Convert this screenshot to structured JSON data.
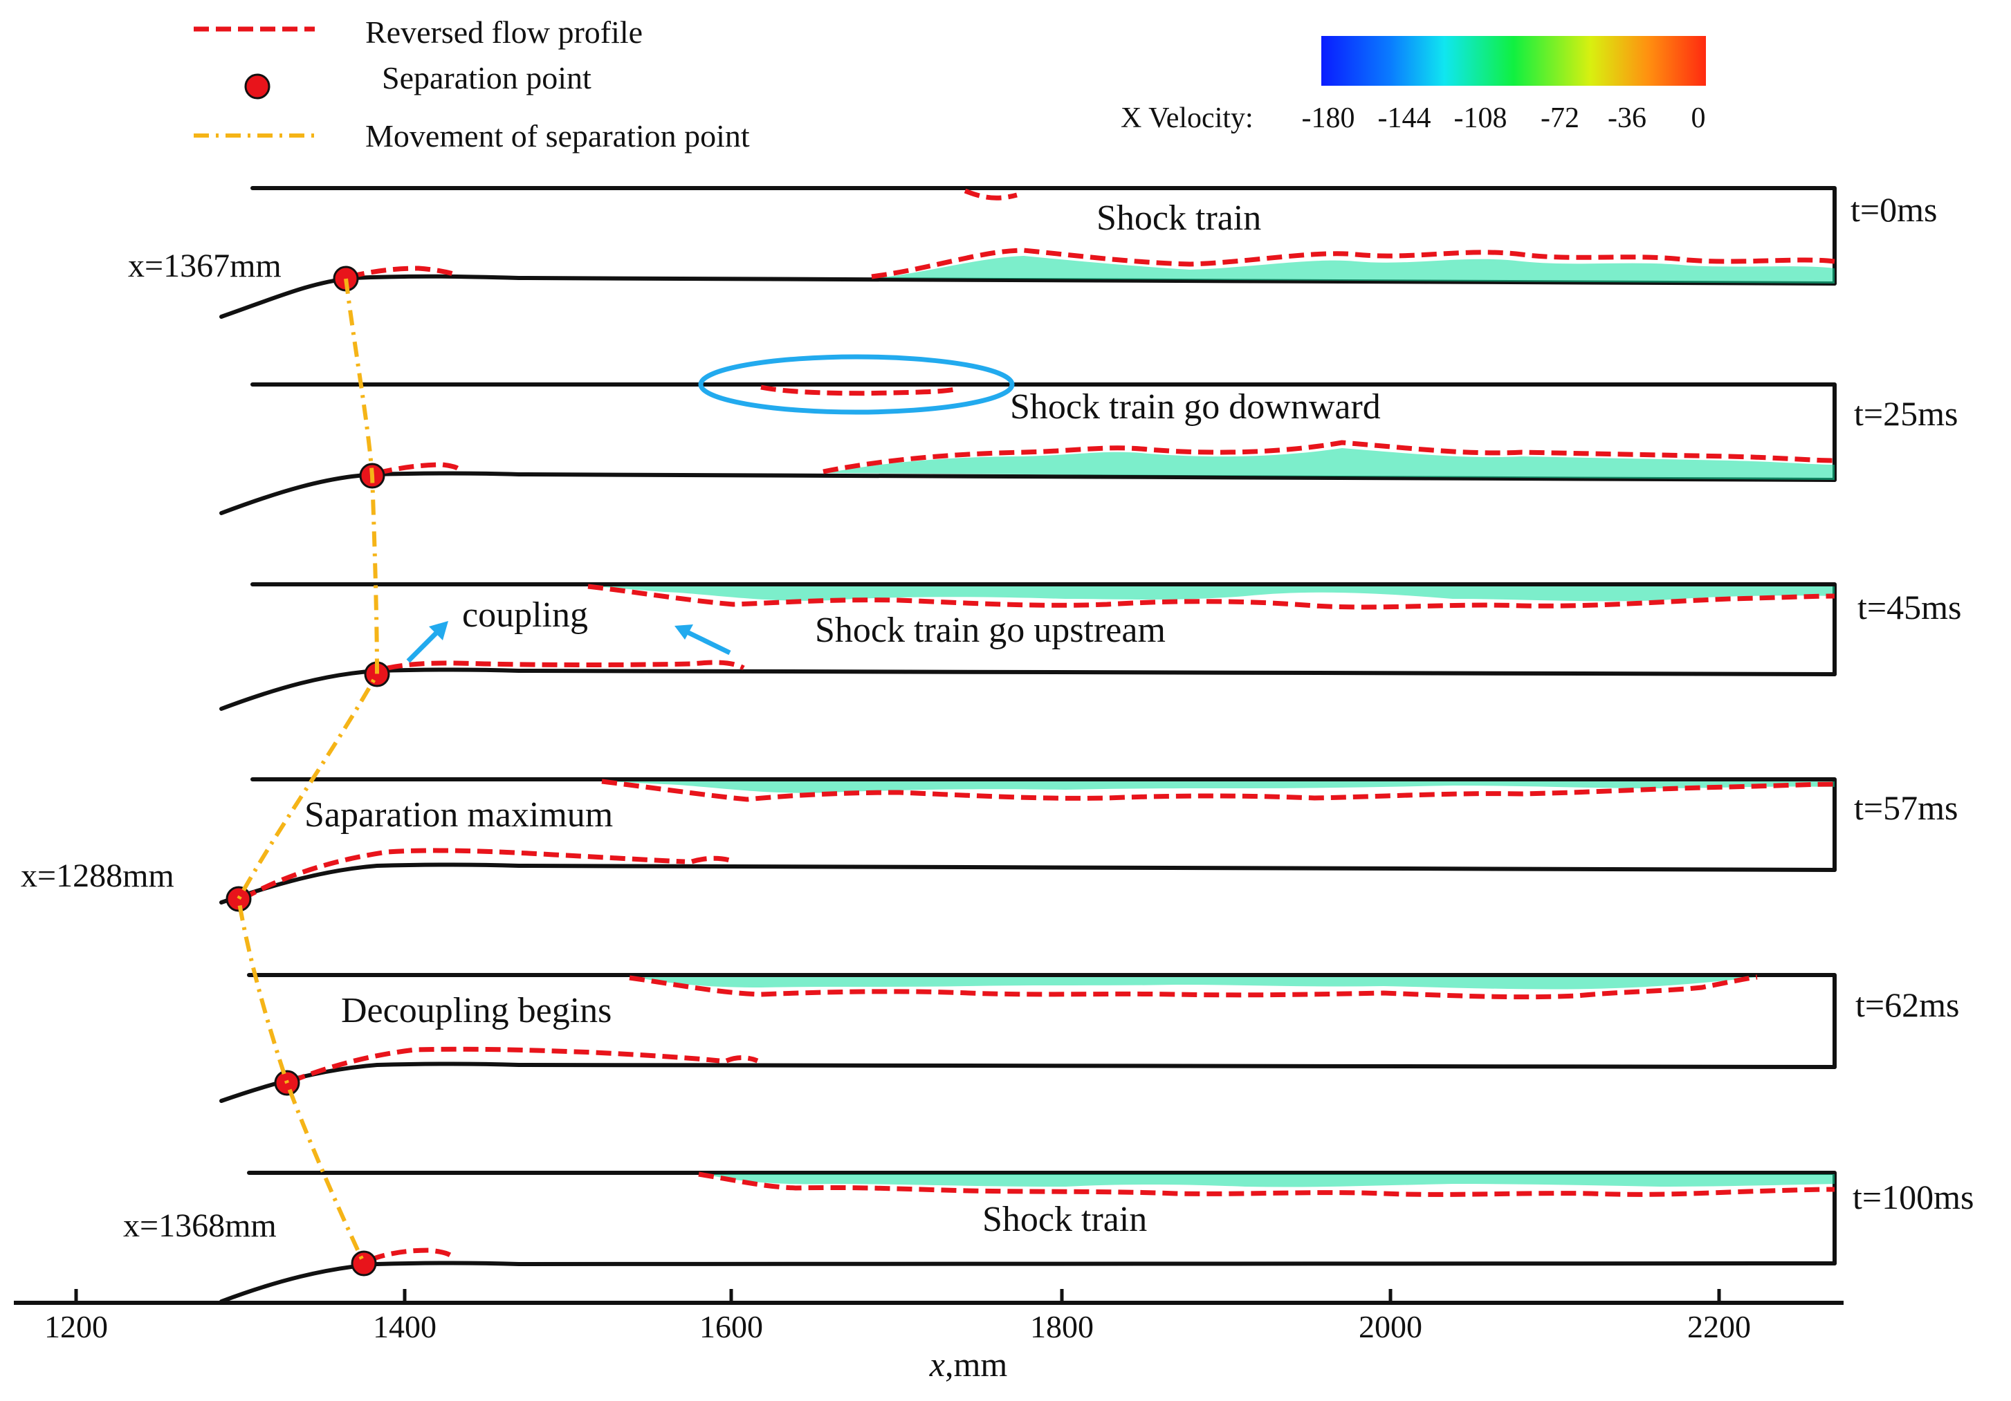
{
  "legend": {
    "reversed_flow": "Reversed flow profile",
    "separation_point": "Separation point",
    "movement": "Movement of separation point"
  },
  "colorbar": {
    "label": "X Velocity:",
    "ticks": [
      "-180",
      "-144",
      "-108",
      "-72",
      "-36",
      "0"
    ],
    "colors": [
      "#0a1cff",
      "#0a5cff",
      "#0aa2ff",
      "#10e6f0",
      "#10f0a8",
      "#10f040",
      "#40f010",
      "#98f010",
      "#e6f010",
      "#ffc010",
      "#ff7a10",
      "#ff2a10"
    ]
  },
  "frames": [
    {
      "time": "t=0ms",
      "label": "Shock train",
      "xpos": "x=1367mm"
    },
    {
      "time": "t=25ms",
      "label": "Shock train go downward"
    },
    {
      "time": "t=45ms",
      "label": "Shock train go upstream",
      "extra": "coupling"
    },
    {
      "time": "t=57ms",
      "label": "Saparation maximum",
      "xpos": "x=1288mm"
    },
    {
      "time": "t=62ms",
      "label": "Decoupling begins"
    },
    {
      "time": "t=100ms",
      "label": "Shock train",
      "xpos": "x=1368mm"
    }
  ],
  "axis": {
    "ticks": [
      "1200",
      "1400",
      "1600",
      "1800",
      "2000",
      "2200"
    ],
    "label_x": "x",
    "label_unit": ",mm"
  },
  "colors": {
    "reversed": "#e8141b",
    "movement": "#f5b417",
    "highlight": "#22aaee"
  }
}
